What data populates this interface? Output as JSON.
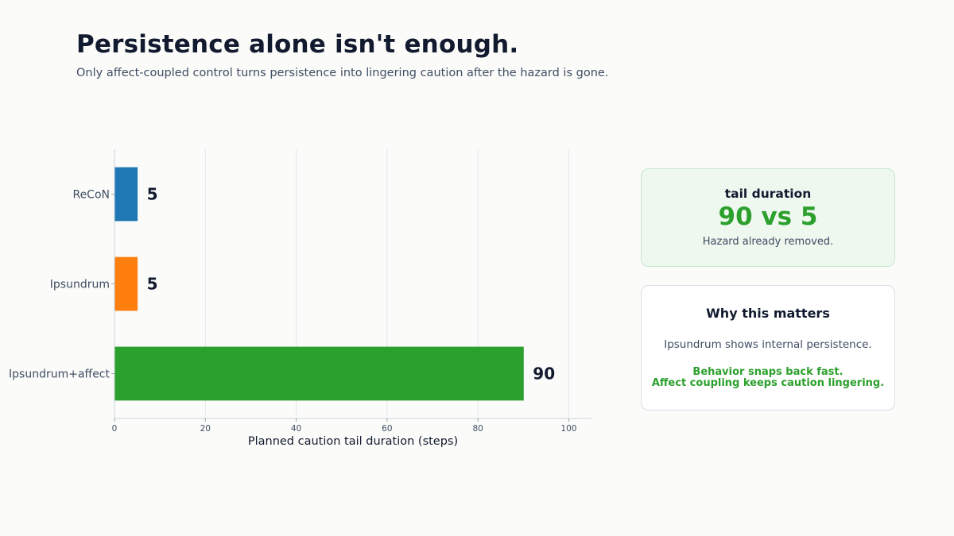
{
  "header": {
    "title": "Persistence alone isn't enough.",
    "subtitle": "Only affect-coupled control turns persistence into lingering caution after the hazard is gone."
  },
  "chart_data": {
    "type": "bar",
    "orientation": "horizontal",
    "categories": [
      "ReCoN",
      "Ipsundrum",
      "Ipsundrum+affect"
    ],
    "values": [
      5,
      5,
      90
    ],
    "colors": [
      "#1f77b4",
      "#ff7f0e",
      "#2ca02c"
    ],
    "data_labels": [
      "5",
      "5",
      "90"
    ],
    "xlabel": "Planned caution tail duration (steps)",
    "ylabel": "",
    "xlim": [
      0,
      105
    ],
    "xticks": [
      0,
      20,
      40,
      60,
      80,
      100
    ],
    "grid": "vertical"
  },
  "metric_card": {
    "label": "tail duration",
    "value": "90 vs 5",
    "note": "Hazard already removed.",
    "accent": "#2ca02c"
  },
  "why_card": {
    "title": "Why this matters",
    "body": "Ipsundrum shows internal persistence.",
    "emphasis_line1": "Behavior snaps back fast.",
    "emphasis_line2": "Affect coupling keeps caution lingering."
  }
}
